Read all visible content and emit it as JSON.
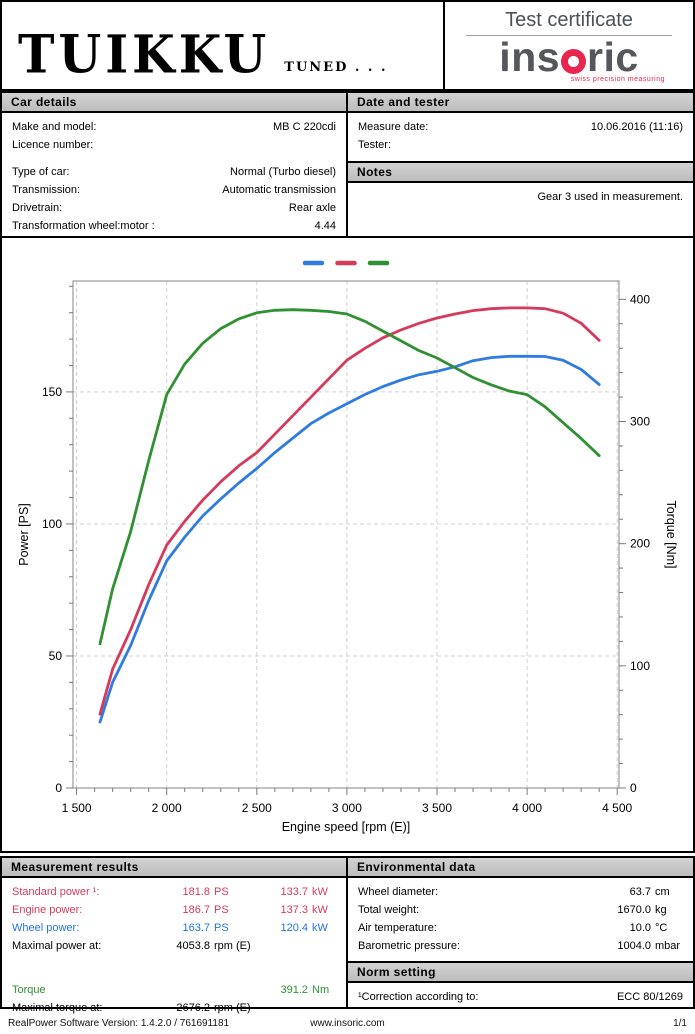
{
  "header": {
    "logo_text": "TUIKKU",
    "logo_sub": "TUNED . . .",
    "title": "Test certificate",
    "brand_prefix": "ins",
    "brand_suffix": "ric",
    "brand_tagline": "swiss precision measuring"
  },
  "car_details": {
    "title": "Car details",
    "rows": [
      {
        "label": "Make and model:",
        "value": "MB C 220cdi"
      },
      {
        "label": "Licence number:",
        "value": ""
      },
      {
        "label": "Type of car:",
        "value": "Normal (Turbo diesel)"
      },
      {
        "label": "Transmission:",
        "value": "Automatic transmission"
      },
      {
        "label": "Drivetrain:",
        "value": "Rear axle"
      },
      {
        "label": "Transformation wheel:motor :",
        "value": "4.44"
      }
    ]
  },
  "date_tester": {
    "title": "Date and tester",
    "rows": [
      {
        "label": "Measure date:",
        "value": "10.06.2016 (11:16)"
      },
      {
        "label": "Tester:",
        "value": ""
      }
    ]
  },
  "notes": {
    "title": "Notes",
    "text": "Gear 3 used in measurement."
  },
  "measurement_results": {
    "title": "Measurement results",
    "rows": [
      {
        "label": "Standard power ¹:",
        "v1": "181.8",
        "u1": "PS",
        "v2": "133.7",
        "u2": "kW",
        "color": "red"
      },
      {
        "label": "Engine power:",
        "v1": "186.7",
        "u1": "PS",
        "v2": "137.3",
        "u2": "kW",
        "color": "red"
      },
      {
        "label": "Wheel power:",
        "v1": "163.7",
        "u1": "PS",
        "v2": "120.4",
        "u2": "kW",
        "color": "blue"
      },
      {
        "label": "Maximal power at:",
        "v1": "4053.8",
        "u1": "rpm (E)",
        "v2": "",
        "u2": "",
        "color": "black"
      },
      {
        "label": "Torque",
        "v1": "",
        "u1": "",
        "v2": "391.2",
        "u2": "Nm",
        "color": "green"
      },
      {
        "label": "Maximal torque at:",
        "v1": "2676.2",
        "u1": "rpm (E)",
        "v2": "",
        "u2": "",
        "color": "black"
      }
    ]
  },
  "environmental_data": {
    "title": "Environmental data",
    "rows": [
      {
        "label": "Wheel diameter:",
        "value": "63.7",
        "unit": "cm"
      },
      {
        "label": "Total weight:",
        "value": "1670.0",
        "unit": "kg"
      },
      {
        "label": "Air temperature:",
        "value": "10.0",
        "unit": "°C"
      },
      {
        "label": "Barometric pressure:",
        "value": "1004.0",
        "unit": "mbar"
      }
    ]
  },
  "norm_setting": {
    "title": "Norm setting",
    "label": "¹Correction according to:",
    "value": "ECC 80/1269"
  },
  "footer": {
    "left": "RealPower Software Version: 1.4.2.0 / 761691181",
    "center": "www.insoric.com",
    "right": "1/1"
  },
  "colors": {
    "power_red": "#d63a5a",
    "wheel_blue": "#2373e8",
    "torque_green": "#2f9132"
  },
  "chart_data": {
    "type": "line",
    "x_axis": {
      "label": "Engine speed [rpm (E)]",
      "min": 1480,
      "max": 4510,
      "major_ticks": [
        1500,
        2000,
        2500,
        3000,
        3500,
        4000,
        4500
      ],
      "tick_labels": [
        "1 500",
        "2 000",
        "2 500",
        "3 000",
        "3 500",
        "4 000",
        "4 500"
      ],
      "minor_step": 100
    },
    "y_left": {
      "label": "Power [PS]",
      "min": 0,
      "max": 192,
      "major_ticks": [
        0,
        50,
        100,
        150
      ],
      "minor_step": 10
    },
    "y_right": {
      "label": "Torque [Nm]",
      "min": 0,
      "max": 415,
      "major_ticks": [
        0,
        100,
        200,
        300,
        400
      ],
      "minor_step": 20
    },
    "grid": "dashed, at major ticks",
    "legend_position": "top-center",
    "series": [
      {
        "name": "Wheel power",
        "axis": "left",
        "color": "#2f7ce1",
        "points": [
          [
            1630,
            25
          ],
          [
            1700,
            40
          ],
          [
            1800,
            54
          ],
          [
            1900,
            71
          ],
          [
            2000,
            86
          ],
          [
            2100,
            95
          ],
          [
            2200,
            103
          ],
          [
            2300,
            109.5
          ],
          [
            2400,
            115.5
          ],
          [
            2500,
            121
          ],
          [
            2600,
            127
          ],
          [
            2700,
            132.5
          ],
          [
            2800,
            138
          ],
          [
            2900,
            142
          ],
          [
            3000,
            145.5
          ],
          [
            3100,
            149
          ],
          [
            3200,
            152
          ],
          [
            3300,
            154.5
          ],
          [
            3400,
            156.5
          ],
          [
            3500,
            157.8
          ],
          [
            3600,
            159.5
          ],
          [
            3700,
            161.8
          ],
          [
            3800,
            163
          ],
          [
            3900,
            163.5
          ],
          [
            4000,
            163.5
          ],
          [
            4100,
            163.4
          ],
          [
            4200,
            162
          ],
          [
            4300,
            158.5
          ],
          [
            4400,
            152.8
          ]
        ]
      },
      {
        "name": "Standard power",
        "axis": "left",
        "color": "#d63a5a",
        "points": [
          [
            1630,
            28
          ],
          [
            1700,
            45
          ],
          [
            1800,
            60
          ],
          [
            1900,
            77
          ],
          [
            2000,
            92
          ],
          [
            2100,
            101
          ],
          [
            2200,
            109
          ],
          [
            2300,
            116
          ],
          [
            2400,
            122
          ],
          [
            2500,
            127
          ],
          [
            2600,
            134
          ],
          [
            2700,
            141
          ],
          [
            2800,
            148
          ],
          [
            2900,
            155
          ],
          [
            3000,
            162
          ],
          [
            3100,
            166.5
          ],
          [
            3200,
            170.5
          ],
          [
            3300,
            173.5
          ],
          [
            3400,
            176
          ],
          [
            3500,
            178
          ],
          [
            3600,
            179.5
          ],
          [
            3700,
            180.8
          ],
          [
            3800,
            181.5
          ],
          [
            3900,
            181.8
          ],
          [
            4000,
            181.8
          ],
          [
            4100,
            181.5
          ],
          [
            4200,
            179.8
          ],
          [
            4300,
            176
          ],
          [
            4400,
            169.5
          ]
        ]
      },
      {
        "name": "Torque",
        "axis": "right",
        "color": "#2f9132",
        "points": [
          [
            1630,
            118
          ],
          [
            1700,
            163
          ],
          [
            1800,
            210
          ],
          [
            1900,
            268
          ],
          [
            2000,
            322
          ],
          [
            2100,
            347
          ],
          [
            2200,
            364
          ],
          [
            2300,
            376
          ],
          [
            2400,
            384
          ],
          [
            2500,
            389
          ],
          [
            2600,
            391
          ],
          [
            2700,
            391.5
          ],
          [
            2800,
            391
          ],
          [
            2900,
            390
          ],
          [
            3000,
            388
          ],
          [
            3100,
            382
          ],
          [
            3200,
            374
          ],
          [
            3300,
            366
          ],
          [
            3400,
            358
          ],
          [
            3500,
            352
          ],
          [
            3600,
            344
          ],
          [
            3700,
            336
          ],
          [
            3800,
            330
          ],
          [
            3900,
            325
          ],
          [
            4000,
            322
          ],
          [
            4100,
            312
          ],
          [
            4200,
            299
          ],
          [
            4300,
            286
          ],
          [
            4400,
            272
          ]
        ]
      }
    ]
  }
}
